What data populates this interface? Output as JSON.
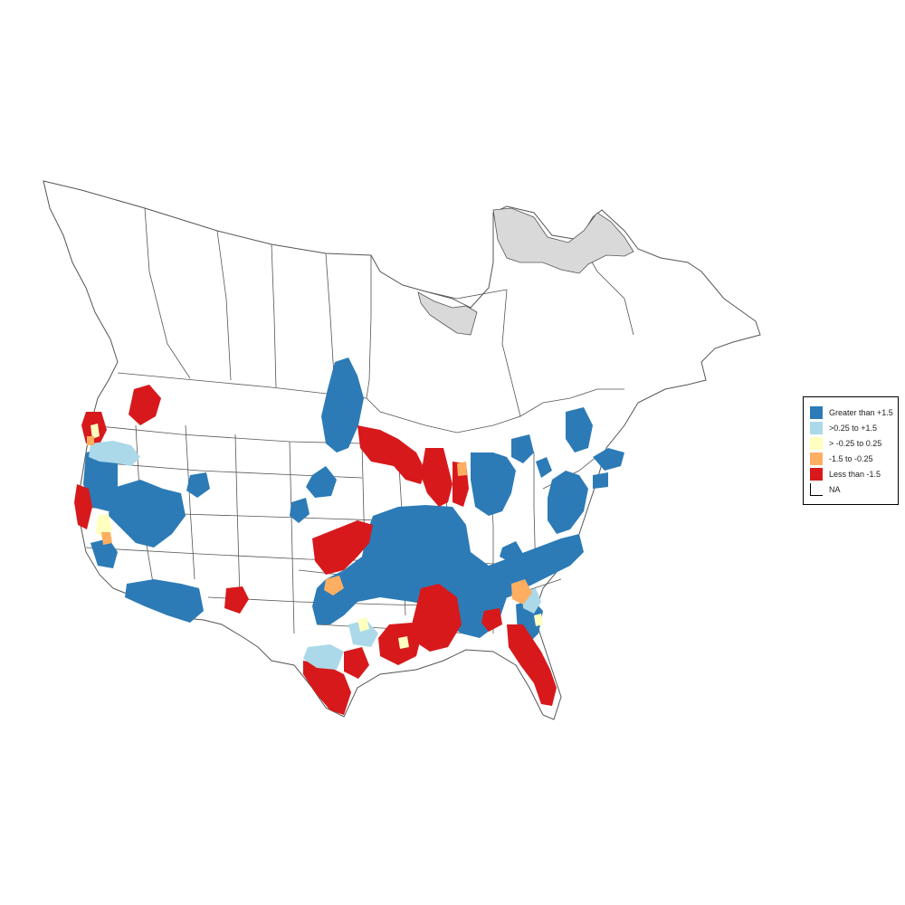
{
  "map": {
    "colors": {
      "boundary": "#555555",
      "land": "#ffffff",
      "na_region": "#d9d9d9",
      "gt_1_5": "#2c7bb6",
      "p025_1_5": "#abd9e9",
      "m025_025": "#ffffbf",
      "m1_5_m025": "#fdae61",
      "lt_m1_5": "#d7191c"
    }
  },
  "legend": {
    "items": [
      {
        "label": "Greater than +1.5",
        "color": "#2c7bb6"
      },
      {
        "label": ">0.25 to +1.5",
        "color": "#abd9e9"
      },
      {
        "label": "> -0.25 to 0.25",
        "color": "#ffffbf"
      },
      {
        "label": "-1.5 to -0.25",
        "color": "#fdae61"
      },
      {
        "label": "Less than -1.5",
        "color": "#d7191c"
      },
      {
        "label": "NA",
        "color": "#ffffff"
      }
    ]
  }
}
